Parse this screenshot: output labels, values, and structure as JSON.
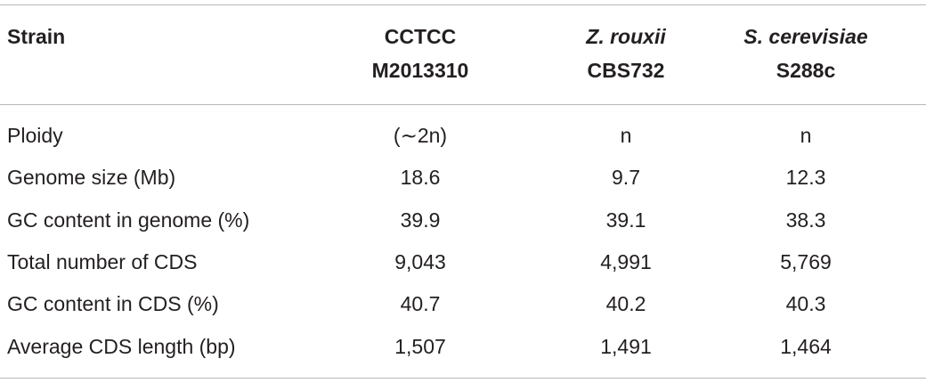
{
  "table": {
    "header": [
      [
        "Strain"
      ],
      [
        "CCTCC",
        "M2013310"
      ],
      [
        "Z. rouxii",
        "CBS732"
      ],
      [
        "S. cerevisiae",
        "S288c"
      ]
    ],
    "italic_first_line": [
      false,
      false,
      true,
      true
    ],
    "rows": [
      [
        "Ploidy",
        "(∼2n)",
        "n",
        "n"
      ],
      [
        "Genome size (Mb)",
        "18.6",
        "9.7",
        "12.3"
      ],
      [
        "GC content in genome (%)",
        "39.9",
        "39.1",
        "38.3"
      ],
      [
        "Total number of CDS",
        "9,043",
        "4,991",
        "5,769"
      ],
      [
        "GC content in CDS (%)",
        "40.7",
        "40.2",
        "40.3"
      ],
      [
        "Average CDS length (bp)",
        "1,507",
        "1,491",
        "1,464"
      ]
    ]
  }
}
